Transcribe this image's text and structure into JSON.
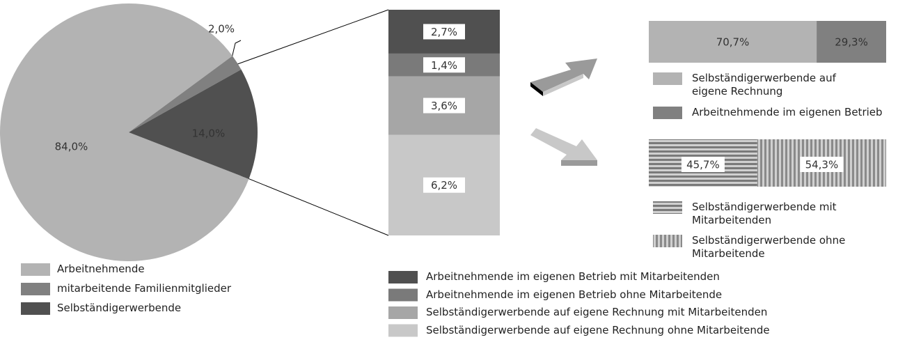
{
  "chart_data": [
    {
      "type": "pie",
      "categories": [
        "Arbeitnehmende",
        "mitarbeitende Familienmitglieder",
        "Selbständigerwerbende"
      ],
      "values": [
        84.0,
        2.0,
        14.0
      ],
      "value_labels": [
        "84,0%",
        "2,0%",
        "14,0%"
      ],
      "colors": [
        "#b3b3b3",
        "#808080",
        "#505050"
      ]
    },
    {
      "type": "stacked-column",
      "series": [
        {
          "name": "Arbeitnehmende im eigenen Betrieb mit Mitarbeitenden",
          "color": "#505050",
          "values": [
            2.7
          ],
          "value_labels": [
            "2,7%"
          ]
        },
        {
          "name": "Arbeitnehmende im eigenen Betrieb ohne Mitarbeitende",
          "color": "#7a7a7a",
          "values": [
            1.4
          ],
          "value_labels": [
            "1,4%"
          ]
        },
        {
          "name": "Selbständigerwerbende auf eigene Rechnung mit Mitarbeitenden",
          "color": "#a6a6a6",
          "values": [
            3.6
          ],
          "value_labels": [
            "3,6%"
          ]
        },
        {
          "name": "Selbständigerwerbende auf eigene Rechnung ohne Mitarbeitende",
          "color": "#c8c8c8",
          "values": [
            6.2
          ],
          "value_labels": [
            "6,2%"
          ]
        }
      ]
    },
    {
      "type": "stacked-bar",
      "series": [
        {
          "name": "Selbständigerwerbende auf eigene Rechnung",
          "color": "#b3b3b3",
          "values": [
            70.7
          ],
          "value_labels": [
            "70,7%"
          ]
        },
        {
          "name": "Arbeitnehmende im eigenen Betrieb",
          "color": "#808080",
          "values": [
            29.3
          ],
          "value_labels": [
            "29,3%"
          ]
        }
      ]
    },
    {
      "type": "stacked-bar",
      "series": [
        {
          "name": "Selbständigerwerbende mit Mitarbeitenden",
          "color": "#8a8a8a",
          "pattern": "horizontal-stripes",
          "values": [
            45.7
          ],
          "value_labels": [
            "45,7%"
          ]
        },
        {
          "name": "Selbständigerwerbende ohne Mitarbeitende",
          "color": "#9a9a9a",
          "pattern": "vertical-stripes",
          "values": [
            54.3
          ],
          "value_labels": [
            "54,3%"
          ]
        }
      ]
    }
  ]
}
